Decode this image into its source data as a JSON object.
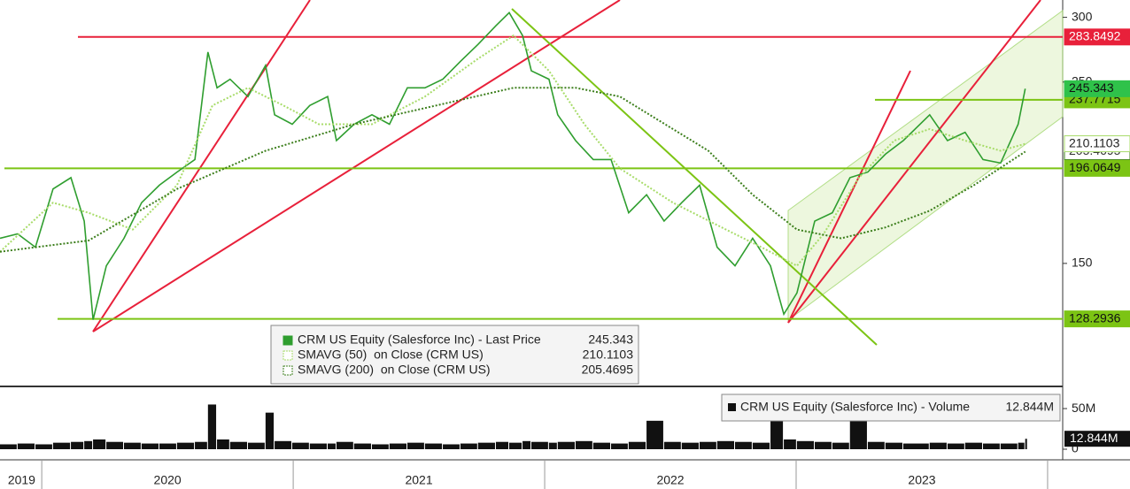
{
  "chart_data": {
    "type": "line",
    "log_scale": true,
    "xlim": [
      2019.834,
      2024.06
    ],
    "ylim": [
      106.6,
      315
    ],
    "yticks": [
      150,
      250,
      300
    ],
    "xticks": [
      2020,
      2021,
      2022,
      2023,
      2024
    ],
    "x_labels": [
      {
        "value": 2019.92,
        "label": "2019"
      },
      {
        "value": 2020.5,
        "label": "2020"
      },
      {
        "value": 2021.5,
        "label": "2021"
      },
      {
        "value": 2022.5,
        "label": "2022"
      },
      {
        "value": 2023.5,
        "label": "2023"
      }
    ],
    "series": [
      {
        "name": "CRM US Equity (Salesforce Inc) - Last Price",
        "color": "#2f9e2f",
        "x": [
          2019.834,
          2019.904,
          2019.975,
          2020.045,
          2020.116,
          2020.169,
          2020.204,
          2020.257,
          2020.327,
          2020.397,
          2020.468,
          2020.538,
          2020.609,
          2020.661,
          2020.697,
          2020.749,
          2020.82,
          2020.89,
          2020.926,
          2020.996,
          2021.066,
          2021.137,
          2021.172,
          2021.242,
          2021.313,
          2021.383,
          2021.454,
          2021.524,
          2021.595,
          2021.665,
          2021.735,
          2021.806,
          2021.859,
          2021.912,
          2021.947,
          2022.017,
          2022.052,
          2022.123,
          2022.193,
          2022.264,
          2022.334,
          2022.405,
          2022.475,
          2022.545,
          2022.616,
          2022.686,
          2022.757,
          2022.827,
          2022.898,
          2022.951,
          2023.003,
          2023.074,
          2023.144,
          2023.214,
          2023.285,
          2023.355,
          2023.426,
          2023.531,
          2023.602,
          2023.672,
          2023.743,
          2023.813,
          2023.883,
          2023.911
        ],
        "values": [
          161,
          163,
          157,
          185,
          191,
          169,
          128,
          149,
          161,
          178,
          187,
          194,
          201,
          272,
          246,
          252,
          240,
          262,
          228,
          222,
          234,
          240,
          212,
          222,
          228,
          222,
          246,
          246,
          252,
          265,
          278,
          293,
          304,
          285,
          258,
          252,
          228,
          212,
          201,
          201,
          173,
          182,
          169,
          178,
          187,
          157,
          149,
          161,
          149,
          130,
          138,
          169,
          173,
          191,
          194,
          204,
          212,
          228,
          212,
          217,
          201,
          199,
          222,
          245.343
        ]
      },
      {
        "name": "SMAVG (50)  on Close (CRM US)",
        "color": "#a8dc6a",
        "x": [
          2019.834,
          2020.045,
          2020.186,
          2020.362,
          2020.538,
          2020.679,
          2020.82,
          2020.961,
          2021.102,
          2021.313,
          2021.524,
          2021.735,
          2021.876,
          2022.017,
          2022.158,
          2022.299,
          2022.51,
          2022.721,
          2022.862,
          2023.003,
          2023.109,
          2023.25,
          2023.39,
          2023.531,
          2023.672,
          2023.813,
          2023.911
        ],
        "values": [
          155,
          178,
          173,
          165,
          187,
          234,
          246,
          234,
          222,
          222,
          240,
          267,
          285,
          258,
          222,
          196,
          178,
          165,
          157,
          149,
          163,
          191,
          212,
          219,
          212,
          206,
          210.1103
        ]
      },
      {
        "name": "SMAVG (200)  on Close (CRM US)",
        "color": "#3d7f1d",
        "x": [
          2019.834,
          2020.186,
          2020.538,
          2020.89,
          2021.242,
          2021.595,
          2021.876,
          2022.123,
          2022.299,
          2022.651,
          2022.827,
          2023.003,
          2023.179,
          2023.355,
          2023.531,
          2023.707,
          2023.911
        ],
        "values": [
          155,
          160,
          185,
          206,
          222,
          235,
          246,
          246,
          240,
          206,
          182,
          165,
          161,
          166,
          174,
          187,
          205.4695
        ]
      }
    ],
    "levels": [
      {
        "value": 283.8492,
        "color": "#e8203a"
      },
      {
        "value": 237.7715,
        "color": "#7cc414"
      },
      {
        "value": 196.0649,
        "color": "#7cc414"
      },
      {
        "value": 128.2936,
        "color": "#7cc414"
      }
    ],
    "volume": {
      "name": "CRM US Equity (Salesforce Inc) - Volume",
      "color": "#111111",
      "values": [
        6,
        7,
        6,
        8,
        9,
        10,
        12,
        9,
        8,
        7,
        7,
        8,
        9,
        55,
        12,
        9,
        8,
        45,
        10,
        8,
        7,
        7,
        9,
        7,
        6,
        7,
        8,
        7,
        6,
        7,
        8,
        9,
        8,
        10,
        9,
        8,
        9,
        10,
        8,
        7,
        9,
        35,
        9,
        8,
        9,
        10,
        9,
        8,
        35,
        12,
        10,
        9,
        8,
        35,
        9,
        8,
        7,
        8,
        7,
        8,
        7,
        7,
        8,
        12.844
      ],
      "value_labels": [
        null,
        null,
        null,
        null,
        null,
        null,
        null,
        null,
        null,
        null,
        null,
        null,
        null,
        null,
        null,
        null,
        null,
        null,
        null,
        null,
        null,
        null,
        null,
        null,
        null,
        null,
        null,
        null,
        null,
        null,
        null,
        null,
        null,
        null,
        null,
        null,
        null,
        null,
        null,
        null,
        null,
        null,
        null,
        null,
        null,
        null,
        null,
        null,
        null,
        null,
        null,
        null,
        null,
        null,
        null,
        null,
        null,
        null,
        null,
        null,
        null,
        null,
        null,
        "12.844M"
      ],
      "ylim": [
        0,
        74
      ],
      "yticks": [
        0,
        {
          "value": 50,
          "label": "50M"
        }
      ]
    }
  }
}
